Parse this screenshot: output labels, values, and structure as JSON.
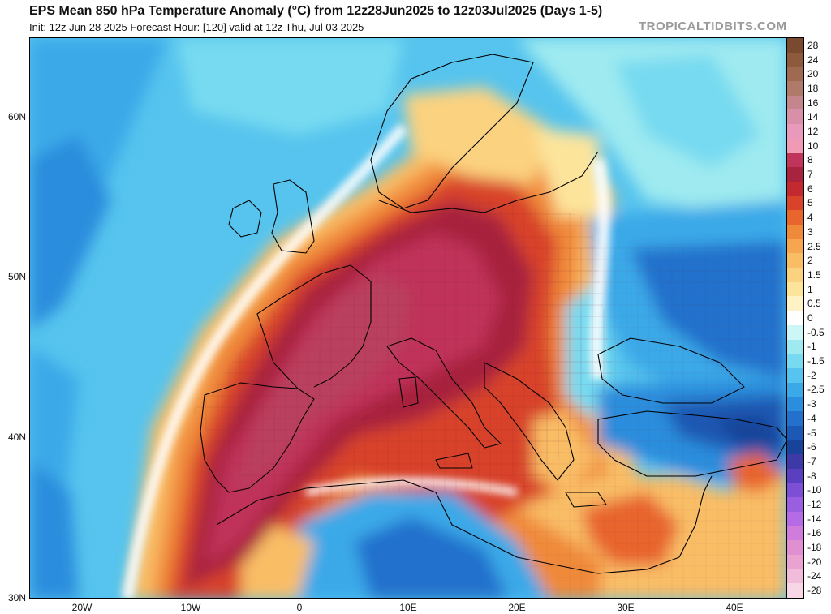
{
  "title": "EPS Mean 850 hPa Temperature Anomaly (°C) from 12z28Jun2025 to 12z03Jul2025 (Days 1-5)",
  "subtitle": "Init: 12z Jun 28 2025   Forecast Hour: [120]   valid at 12z Thu, Jul 03 2025",
  "watermark": "TROPICALTIDBITS.COM",
  "map": {
    "lat_labels": [
      "60N",
      "50N",
      "40N",
      "30N"
    ],
    "lon_labels": [
      "20W",
      "10W",
      "0",
      "10E",
      "20E",
      "30E",
      "40E"
    ],
    "regions": [
      "spain-anomaly-max",
      "france-anomaly-max",
      "germany-anomaly-max",
      "italy-anomaly-max",
      "balkans-warm",
      "eastern-europe-cool",
      "turkey-cool",
      "atlantic-cool",
      "north-africa-cool",
      "eastern-med-warm"
    ]
  },
  "colorbar": {
    "levels": [
      {
        "label": "28",
        "color": "#7a4a2e"
      },
      {
        "label": "24",
        "color": "#8e5a3c"
      },
      {
        "label": "20",
        "color": "#a06a52"
      },
      {
        "label": "18",
        "color": "#b07a6a"
      },
      {
        "label": "16",
        "color": "#c2868c"
      },
      {
        "label": "14",
        "color": "#d88fa8"
      },
      {
        "label": "12",
        "color": "#e999bc"
      },
      {
        "label": "10",
        "color": "#f09ab5"
      },
      {
        "label": "8",
        "color": "#c0335a"
      },
      {
        "label": "7",
        "color": "#a8243e"
      },
      {
        "label": "6",
        "color": "#c22a2f"
      },
      {
        "label": "5",
        "color": "#d84329"
      },
      {
        "label": "4",
        "color": "#e8652e"
      },
      {
        "label": "3",
        "color": "#f08a3b"
      },
      {
        "label": "2.5",
        "color": "#f6a550"
      },
      {
        "label": "2",
        "color": "#f9bd66"
      },
      {
        "label": "1.5",
        "color": "#fbd27f"
      },
      {
        "label": "1",
        "color": "#fde49b"
      },
      {
        "label": "0.5",
        "color": "#fff3c6"
      },
      {
        "label": "0",
        "color": "#ffffff"
      },
      {
        "label": "-0.5",
        "color": "#cdf6f6"
      },
      {
        "label": "-1",
        "color": "#9eeaf0"
      },
      {
        "label": "-1.5",
        "color": "#77daf0"
      },
      {
        "label": "-2",
        "color": "#56c4ee"
      },
      {
        "label": "-2.5",
        "color": "#3aa9e8"
      },
      {
        "label": "-3",
        "color": "#2b8ddd"
      },
      {
        "label": "-4",
        "color": "#2371cc"
      },
      {
        "label": "-5",
        "color": "#1c59b4"
      },
      {
        "label": "-6",
        "color": "#17449a"
      },
      {
        "label": "-7",
        "color": "#3d3aa8"
      },
      {
        "label": "-8",
        "color": "#5a3fc0"
      },
      {
        "label": "-10",
        "color": "#7d4fd4"
      },
      {
        "label": "-12",
        "color": "#9a5fe0"
      },
      {
        "label": "-14",
        "color": "#b66be6"
      },
      {
        "label": "-16",
        "color": "#cf7cdc"
      },
      {
        "label": "-18",
        "color": "#e08fd0"
      },
      {
        "label": "-20",
        "color": "#eaa3d0"
      },
      {
        "label": "-24",
        "color": "#f1bcd9"
      },
      {
        "label": "-28",
        "color": "#f7d6e6"
      }
    ]
  }
}
